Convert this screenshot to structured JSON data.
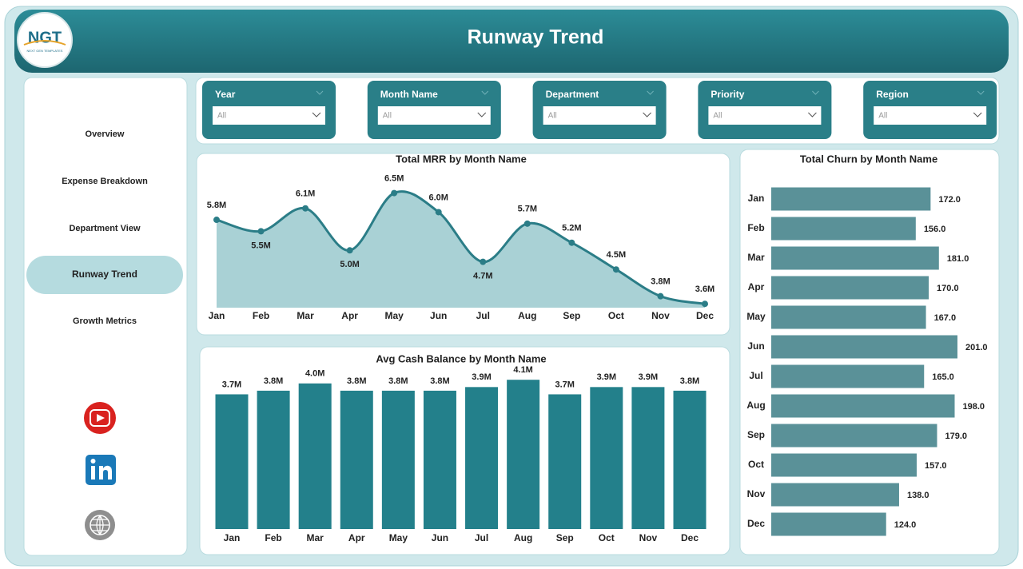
{
  "header": {
    "title": "Runway Trend",
    "logo": "NGT",
    "logo_tagline": "NEXT GEN TEMPLATES"
  },
  "nav": [
    "Overview",
    "Expense Breakdown",
    "Department View",
    "Runway Trend",
    "Growth Metrics"
  ],
  "nav_selected": 3,
  "filters": [
    {
      "label": "Year",
      "value": "All"
    },
    {
      "label": "Month Name",
      "value": "All"
    },
    {
      "label": "Department",
      "value": "All"
    },
    {
      "label": "Priority",
      "value": "All"
    },
    {
      "label": "Region",
      "value": "All"
    }
  ],
  "chart_data": [
    {
      "type": "line",
      "title": "Total MRR by Month Name",
      "categories": [
        "Jan",
        "Feb",
        "Mar",
        "Apr",
        "May",
        "Jun",
        "Jul",
        "Aug",
        "Sep",
        "Oct",
        "Nov",
        "Dec"
      ],
      "values": [
        5800000,
        5500000,
        6100000,
        5000000,
        6500000,
        6000000,
        4700000,
        5700000,
        5200000,
        4500000,
        3800000,
        3600000
      ],
      "value_labels": [
        "5.8M",
        "5.5M",
        "6.1M",
        "5.0M",
        "6.5M",
        "6.0M",
        "4.7M",
        "5.7M",
        "5.2M",
        "4.5M",
        "3.8M",
        "3.6M"
      ],
      "color": "#2b7d87",
      "area_color": "#a9d1d5",
      "ylim": [
        3500000,
        6700000
      ]
    },
    {
      "type": "bar",
      "title": "Avg Cash Balance by Month Name",
      "categories": [
        "Jan",
        "Feb",
        "Mar",
        "Apr",
        "May",
        "Jun",
        "Jul",
        "Aug",
        "Sep",
        "Oct",
        "Nov",
        "Dec"
      ],
      "values": [
        3700000,
        3800000,
        4000000,
        3800000,
        3800000,
        3800000,
        3900000,
        4100000,
        3700000,
        3900000,
        3900000,
        3800000
      ],
      "value_labels": [
        "3.7M",
        "3.8M",
        "4.0M",
        "3.8M",
        "3.8M",
        "3.8M",
        "3.9M",
        "4.1M",
        "3.7M",
        "3.9M",
        "3.9M",
        "3.8M"
      ],
      "color": "#23808b",
      "ylim": [
        0,
        4500000
      ]
    },
    {
      "type": "barh",
      "title": "Total Churn by Month Name",
      "categories": [
        "Jan",
        "Feb",
        "Mar",
        "Apr",
        "May",
        "Jun",
        "Jul",
        "Aug",
        "Sep",
        "Oct",
        "Nov",
        "Dec"
      ],
      "values": [
        172,
        156,
        181,
        170,
        167,
        201,
        165,
        198,
        179,
        157,
        138,
        124
      ],
      "value_labels": [
        "172.0",
        "156.0",
        "181.0",
        "170.0",
        "167.0",
        "201.0",
        "165.0",
        "198.0",
        "179.0",
        "157.0",
        "138.0",
        "124.0"
      ],
      "color": "#5a9198",
      "xlim": [
        0,
        220
      ]
    }
  ]
}
